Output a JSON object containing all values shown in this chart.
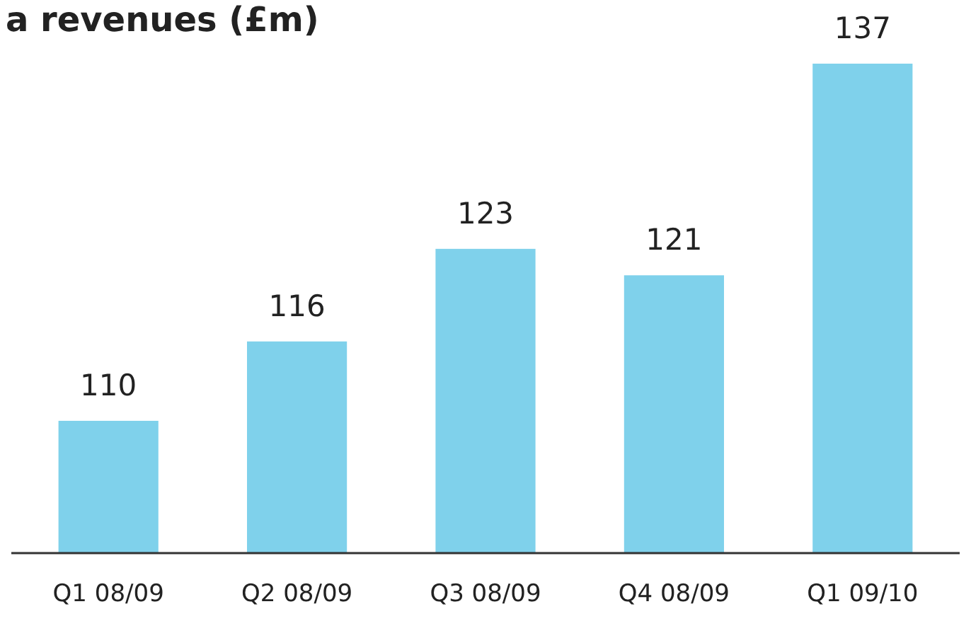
{
  "chart_data": {
    "type": "bar",
    "title": "a revenues (£m)",
    "categories": [
      "Q1 08/09",
      "Q2 08/09",
      "Q3 08/09",
      "Q4 08/09",
      "Q1 09/10"
    ],
    "values": [
      110,
      116,
      123,
      121,
      137
    ],
    "color": "#7fd1eb",
    "ylim": [
      100,
      137
    ],
    "data_labels": true
  }
}
